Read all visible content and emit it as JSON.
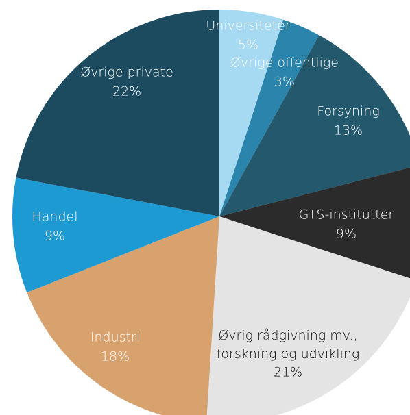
{
  "chart_data": {
    "type": "pie",
    "categories": [
      "Universiteter",
      "Øvrige offentlige",
      "Forsyning",
      "GTS-institutter",
      "Øvrig rådgivning mv., forskning og udvikling",
      "Industri",
      "Handel",
      "Øvrige private"
    ],
    "values": [
      5,
      3,
      13,
      9,
      21,
      18,
      9,
      22
    ],
    "value_labels": [
      "5%",
      "3%",
      "13%",
      "9%",
      "21%",
      "18%",
      "9%",
      "22%"
    ],
    "colors": [
      "#a6d9f2",
      "#2b84ab",
      "#24586c",
      "#2b2b2b",
      "#e4e4e4",
      "#d8a26f",
      "#1e9ad3",
      "#1c4a5f"
    ],
    "label_colors": [
      "#ffffff",
      "#ffffff",
      "#ffffff",
      "#ffffff",
      "#111111",
      "#ffffff",
      "#ffffff",
      "#ffffff"
    ]
  }
}
